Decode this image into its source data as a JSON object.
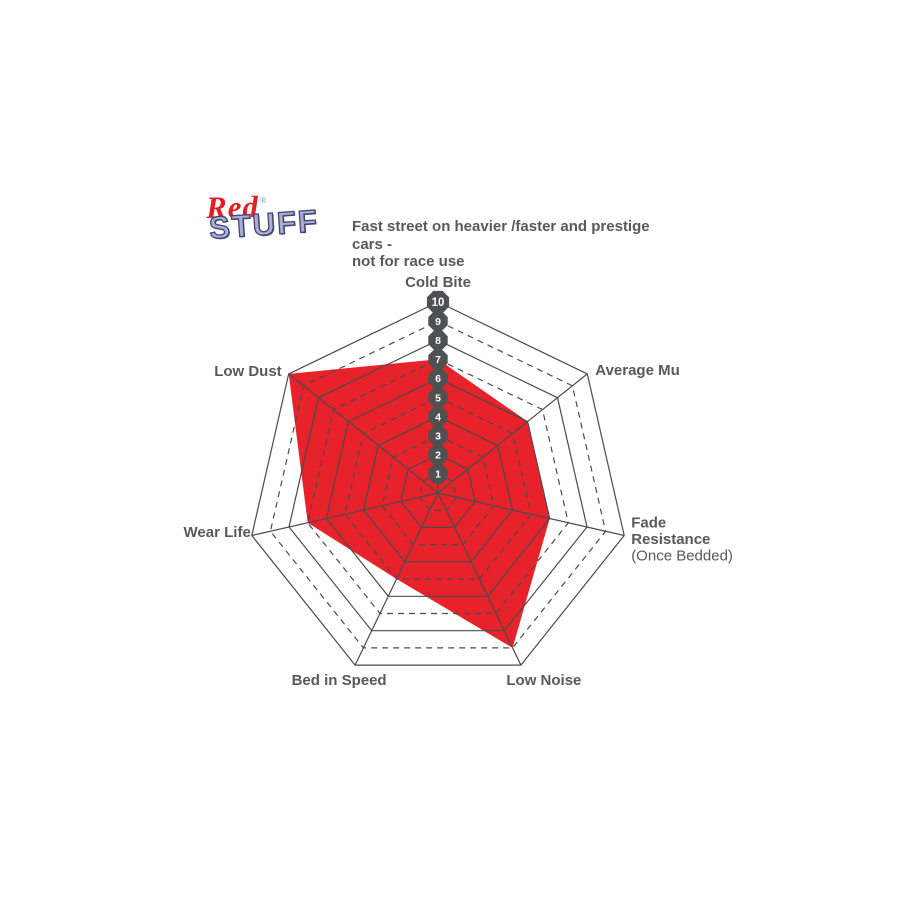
{
  "logo": {
    "word1": "Red",
    "trademark": "®",
    "word2": "STUFF",
    "word1_color": "#e31e24",
    "word2_color": "#a8aed8"
  },
  "header": {
    "line1": "Fast street on heavier /faster and prestige cars -",
    "line2": "not for race use"
  },
  "chart_data": {
    "type": "radar",
    "title": "Fast street on heavier /faster and prestige cars - not for race use",
    "categories": [
      "Cold Bite",
      "Average Mu",
      "Fade Resistance",
      "Low Noise",
      "Bed in Speed",
      "Wear Life",
      "Low Dust"
    ],
    "category_sublabels": [
      "",
      "",
      "(Once Bedded)",
      "",
      "",
      "",
      ""
    ],
    "values": [
      7,
      6,
      6,
      9,
      5,
      7,
      10
    ],
    "scale_min": 0,
    "scale_max": 10,
    "scale_ticks": [
      "1",
      "2",
      "3",
      "4",
      "5",
      "6",
      "7",
      "8",
      "9",
      "10"
    ],
    "grid": "10 concentric heptagon rings; even rings solid, odd rings dashed; 7 spokes",
    "legend": "none",
    "colors": {
      "series_fill": "#e7222b",
      "grid_line": "#4a4b4d",
      "axis_label": "#58595b",
      "tick_badge_fill": "#4f5052",
      "tick_badge_text": "#ffffff"
    }
  }
}
